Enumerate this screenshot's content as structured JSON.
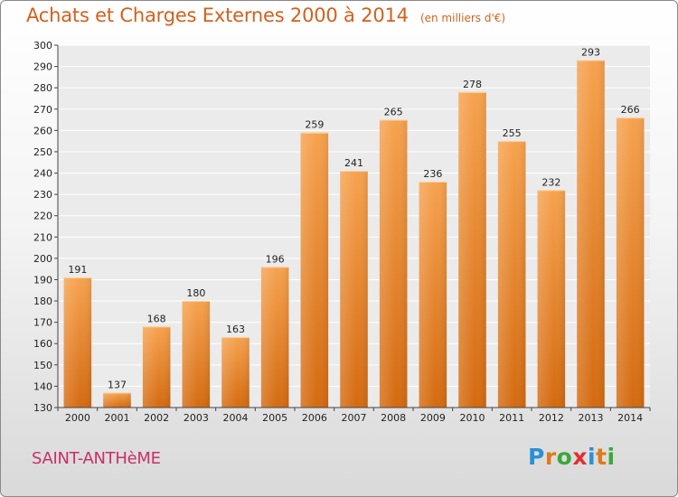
{
  "title": "Achats et Charges Externes 2000 à 2014",
  "unit_note": "(en milliers d'€)",
  "commune": "SAINT-ANTHèME",
  "brand": {
    "letters": [
      {
        "ch": "P",
        "color": "#2a8fd6"
      },
      {
        "ch": "r",
        "color": "#e07a1a"
      },
      {
        "ch": "o",
        "color": "#3aa83a"
      },
      {
        "ch": "x",
        "color": "#e03030"
      },
      {
        "ch": "i",
        "color": "#2a8fd6"
      },
      {
        "ch": "t",
        "color": "#e07a1a"
      },
      {
        "ch": "i",
        "color": "#3aa83a"
      }
    ]
  },
  "colors": {
    "bar_top": "#f6a24e",
    "bar_bottom": "#d46a10",
    "title": "#d4601c",
    "commune": "#c8306a",
    "grid": "#ffffff"
  },
  "chart_data": {
    "type": "bar",
    "categories": [
      "2000",
      "2001",
      "2002",
      "2003",
      "2004",
      "2005",
      "2006",
      "2007",
      "2008",
      "2009",
      "2010",
      "2011",
      "2012",
      "2013",
      "2014"
    ],
    "values": [
      191,
      137,
      168,
      180,
      163,
      196,
      259,
      241,
      265,
      236,
      278,
      255,
      232,
      293,
      266
    ],
    "ylim": [
      130,
      300
    ],
    "yticks": [
      130,
      140,
      150,
      160,
      170,
      180,
      190,
      200,
      210,
      220,
      230,
      240,
      250,
      260,
      270,
      280,
      290,
      300
    ],
    "grid": true,
    "legend": "none",
    "xlabel": "",
    "ylabel": ""
  }
}
